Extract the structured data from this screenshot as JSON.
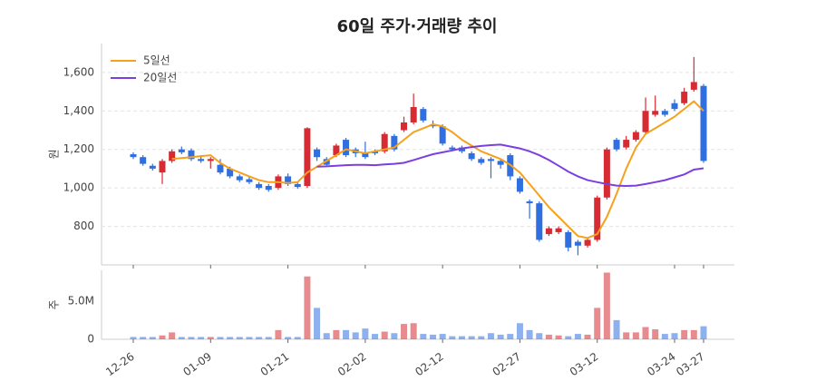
{
  "chart_data": [
    {
      "type": "candlestick",
      "title": "60일 주가·거래량 추이",
      "ylabel": "원",
      "up_color": "#d62b33",
      "down_color": "#2f6fe0",
      "grid": true,
      "legend": "upper left",
      "ylim": [
        600,
        1750
      ],
      "yticks": [
        800,
        {
          "value": 1000,
          "label": "1,000"
        },
        {
          "value": 1200,
          "label": "1,200"
        },
        {
          "value": 1400,
          "label": "1,400"
        },
        {
          "value": 1600,
          "label": "1,600"
        }
      ],
      "open": [
        1175,
        1160,
        1115,
        1080,
        1140,
        1200,
        1195,
        1150,
        1140,
        1120,
        1100,
        1060,
        1045,
        1020,
        1010,
        1000,
        1060,
        1020,
        1010,
        1200,
        1150,
        1170,
        1250,
        1200,
        1180,
        1190,
        1190,
        1270,
        1300,
        1340,
        1410,
        1330,
        1320,
        1210,
        1210,
        1180,
        1150,
        1150,
        1140,
        1170,
        1050,
        930,
        920,
        760,
        770,
        770,
        720,
        700,
        730,
        950,
        1250,
        1210,
        1250,
        1290,
        1380,
        1400,
        1440,
        1440,
        1510,
        1530
      ],
      "high": [
        1185,
        1170,
        1125,
        1150,
        1200,
        1215,
        1205,
        1170,
        1160,
        1150,
        1110,
        1070,
        1055,
        1030,
        1020,
        1070,
        1075,
        1030,
        1315,
        1210,
        1160,
        1230,
        1260,
        1210,
        1240,
        1200,
        1290,
        1280,
        1370,
        1490,
        1420,
        1350,
        1330,
        1220,
        1220,
        1190,
        1160,
        1160,
        1150,
        1180,
        1060,
        940,
        930,
        800,
        800,
        780,
        730,
        740,
        960,
        1210,
        1260,
        1270,
        1300,
        1470,
        1480,
        1410,
        1460,
        1520,
        1680,
        1540
      ],
      "low": [
        1150,
        1115,
        1090,
        1020,
        1130,
        1175,
        1140,
        1130,
        1100,
        1070,
        1050,
        1030,
        1020,
        990,
        980,
        990,
        1010,
        995,
        1000,
        1140,
        1110,
        1160,
        1160,
        1160,
        1150,
        1170,
        1180,
        1190,
        1290,
        1330,
        1340,
        1310,
        1220,
        1190,
        1180,
        1140,
        1120,
        1050,
        1100,
        1040,
        970,
        840,
        720,
        750,
        760,
        670,
        650,
        690,
        720,
        940,
        1190,
        1200,
        1240,
        1280,
        1370,
        1370,
        1400,
        1430,
        1500,
        1130
      ],
      "close": [
        1160,
        1125,
        1100,
        1140,
        1190,
        1185,
        1150,
        1140,
        1150,
        1080,
        1060,
        1040,
        1030,
        1000,
        990,
        1060,
        1020,
        1005,
        1310,
        1160,
        1120,
        1220,
        1170,
        1180,
        1160,
        1180,
        1280,
        1200,
        1340,
        1420,
        1350,
        1320,
        1230,
        1200,
        1190,
        1150,
        1130,
        1140,
        1120,
        1060,
        980,
        920,
        730,
        790,
        790,
        690,
        700,
        730,
        950,
        1200,
        1200,
        1250,
        1290,
        1400,
        1400,
        1380,
        1410,
        1500,
        1550,
        1140
      ],
      "series": [
        {
          "name": "5일선",
          "color": "#f5a11c",
          "values": [
            null,
            null,
            null,
            null,
            1150,
            1155,
            1160,
            1165,
            1170,
            1130,
            1100,
            1080,
            1060,
            1040,
            1030,
            1030,
            1025,
            1030,
            1080,
            1110,
            1140,
            1170,
            1200,
            1190,
            1180,
            1190,
            1200,
            1210,
            1250,
            1290,
            1310,
            1330,
            1320,
            1290,
            1250,
            1220,
            1190,
            1170,
            1150,
            1120,
            1080,
            1020,
            960,
            900,
            850,
            800,
            750,
            740,
            760,
            850,
            970,
            1100,
            1210,
            1280,
            1310,
            1340,
            1370,
            1410,
            1450,
            1400
          ]
        },
        {
          "name": "20일선",
          "color": "#7b3fe0",
          "values": [
            null,
            null,
            null,
            null,
            null,
            null,
            null,
            null,
            null,
            null,
            null,
            null,
            null,
            null,
            null,
            null,
            null,
            null,
            null,
            1110,
            1112,
            1115,
            1118,
            1120,
            1120,
            1118,
            1122,
            1125,
            1130,
            1145,
            1160,
            1175,
            1185,
            1195,
            1205,
            1212,
            1218,
            1222,
            1225,
            1215,
            1205,
            1190,
            1170,
            1145,
            1115,
            1085,
            1060,
            1040,
            1030,
            1020,
            1012,
            1010,
            1012,
            1020,
            1030,
            1040,
            1055,
            1070,
            1095,
            1102
          ]
        }
      ]
    },
    {
      "type": "bar",
      "ylabel": "주",
      "ylim": [
        0,
        9000000
      ],
      "yticks": [
        0,
        {
          "value": 5000000,
          "label": "5.0M"
        }
      ],
      "categories": [
        "12-26",
        null,
        null,
        null,
        null,
        null,
        null,
        null,
        "01-09",
        null,
        null,
        null,
        null,
        null,
        null,
        null,
        "01-21",
        null,
        null,
        null,
        null,
        null,
        null,
        null,
        "02-02",
        null,
        null,
        null,
        null,
        null,
        null,
        null,
        "02-12",
        null,
        null,
        null,
        null,
        null,
        null,
        null,
        "02-27",
        null,
        null,
        null,
        null,
        null,
        null,
        null,
        "03-12",
        null,
        null,
        null,
        null,
        null,
        null,
        null,
        "03-24",
        null,
        null,
        "03-27"
      ],
      "values": [
        300000,
        300000,
        300000,
        500000,
        900000,
        300000,
        300000,
        300000,
        300000,
        300000,
        300000,
        300000,
        300000,
        300000,
        300000,
        1200000,
        300000,
        300000,
        8200000,
        4100000,
        800000,
        1200000,
        1200000,
        900000,
        1400000,
        700000,
        1000000,
        800000,
        2000000,
        2100000,
        700000,
        600000,
        700000,
        400000,
        400000,
        400000,
        400000,
        800000,
        600000,
        700000,
        2100000,
        1200000,
        800000,
        600000,
        500000,
        400000,
        700000,
        600000,
        4100000,
        8700000,
        2500000,
        900000,
        900000,
        1600000,
        1300000,
        700000,
        800000,
        1200000,
        1200000,
        1700000
      ]
    }
  ]
}
